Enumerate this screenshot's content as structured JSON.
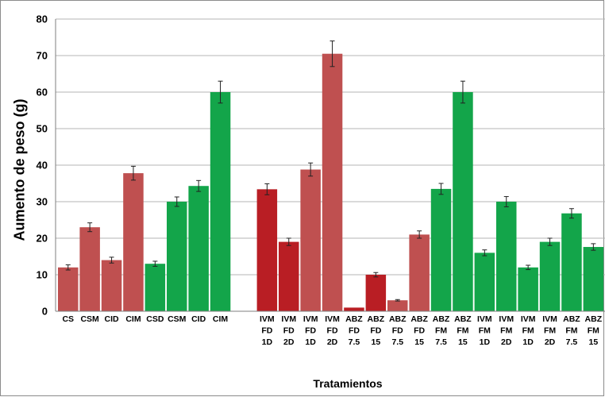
{
  "chart_data": {
    "type": "bar",
    "title": "",
    "xlabel": "Tratamientos",
    "ylabel": "Aumento de peso (g)",
    "ylim": [
      0,
      80
    ],
    "yticks": [
      "0",
      "10",
      "20",
      "30",
      "40",
      "50",
      "60",
      "70",
      "80"
    ],
    "grid": true,
    "legend": "none",
    "colors": {
      "red": "#bf5050",
      "dark_red": "#b91e24",
      "green": "#13a54a",
      "axis": "#7f7f7f",
      "grid": "#b4b4b4",
      "error_bar": "#222222"
    },
    "groups": [
      {
        "bars": [
          {
            "label": [
              "CS"
            ],
            "value": 12.0,
            "error": 0.7,
            "color": "red"
          },
          {
            "label": [
              "CSM"
            ],
            "value": 23.0,
            "error": 1.2,
            "color": "red"
          },
          {
            "label": [
              "CID"
            ],
            "value": 14.0,
            "error": 0.8,
            "color": "red"
          },
          {
            "label": [
              "CIM"
            ],
            "value": 37.8,
            "error": 1.9,
            "color": "red"
          },
          {
            "label": [
              "CSD"
            ],
            "value": 13.0,
            "error": 0.7,
            "color": "green"
          },
          {
            "label": [
              "CSM"
            ],
            "value": 30.0,
            "error": 1.3,
            "color": "green"
          },
          {
            "label": [
              "CID"
            ],
            "value": 34.3,
            "error": 1.5,
            "color": "green"
          },
          {
            "label": [
              "CIM"
            ],
            "value": 60.0,
            "error": 3.0,
            "color": "green"
          }
        ]
      },
      {
        "bars": [
          {
            "label": [
              "IVM",
              "FD",
              "1D"
            ],
            "value": 33.4,
            "error": 1.5,
            "color": "dark_red"
          },
          {
            "label": [
              "IVM",
              "FD",
              "2D"
            ],
            "value": 19.0,
            "error": 1.0,
            "color": "dark_red"
          },
          {
            "label": [
              "IVM",
              "FD",
              "1D"
            ],
            "value": 38.8,
            "error": 1.8,
            "color": "red"
          },
          {
            "label": [
              "IVM",
              "FD",
              "2D"
            ],
            "value": 70.5,
            "error": 3.5,
            "color": "red"
          },
          {
            "label": [
              "ABZ",
              "FD",
              "7.5"
            ],
            "value": 1.0,
            "error": 0.0,
            "color": "dark_red"
          },
          {
            "label": [
              "ABZ",
              "FD",
              "15"
            ],
            "value": 10.0,
            "error": 0.6,
            "color": "dark_red"
          },
          {
            "label": [
              "ABZ",
              "FD",
              "7.5"
            ],
            "value": 3.0,
            "error": 0.2,
            "color": "red"
          },
          {
            "label": [
              "ABZ",
              "FD",
              "15"
            ],
            "value": 21.0,
            "error": 1.0,
            "color": "red"
          },
          {
            "label": [
              "ABZ",
              "FM",
              "7.5"
            ],
            "value": 33.5,
            "error": 1.5,
            "color": "green"
          },
          {
            "label": [
              "ABZ",
              "FM",
              "15"
            ],
            "value": 60.0,
            "error": 3.0,
            "color": "green"
          },
          {
            "label": [
              "IVM",
              "FM",
              "1D"
            ],
            "value": 16.0,
            "error": 0.8,
            "color": "green"
          },
          {
            "label": [
              "IVM",
              "FM",
              "2D"
            ],
            "value": 30.0,
            "error": 1.4,
            "color": "green"
          },
          {
            "label": [
              "IVM",
              "FM",
              "1D"
            ],
            "value": 12.0,
            "error": 0.6,
            "color": "green"
          },
          {
            "label": [
              "IVM",
              "FM",
              "2D"
            ],
            "value": 19.0,
            "error": 1.0,
            "color": "green"
          },
          {
            "label": [
              "ABZ",
              "FM",
              "7.5"
            ],
            "value": 26.8,
            "error": 1.3,
            "color": "green"
          },
          {
            "label": [
              "ABZ",
              "FM",
              "15"
            ],
            "value": 17.6,
            "error": 0.9,
            "color": "green"
          }
        ]
      }
    ]
  }
}
